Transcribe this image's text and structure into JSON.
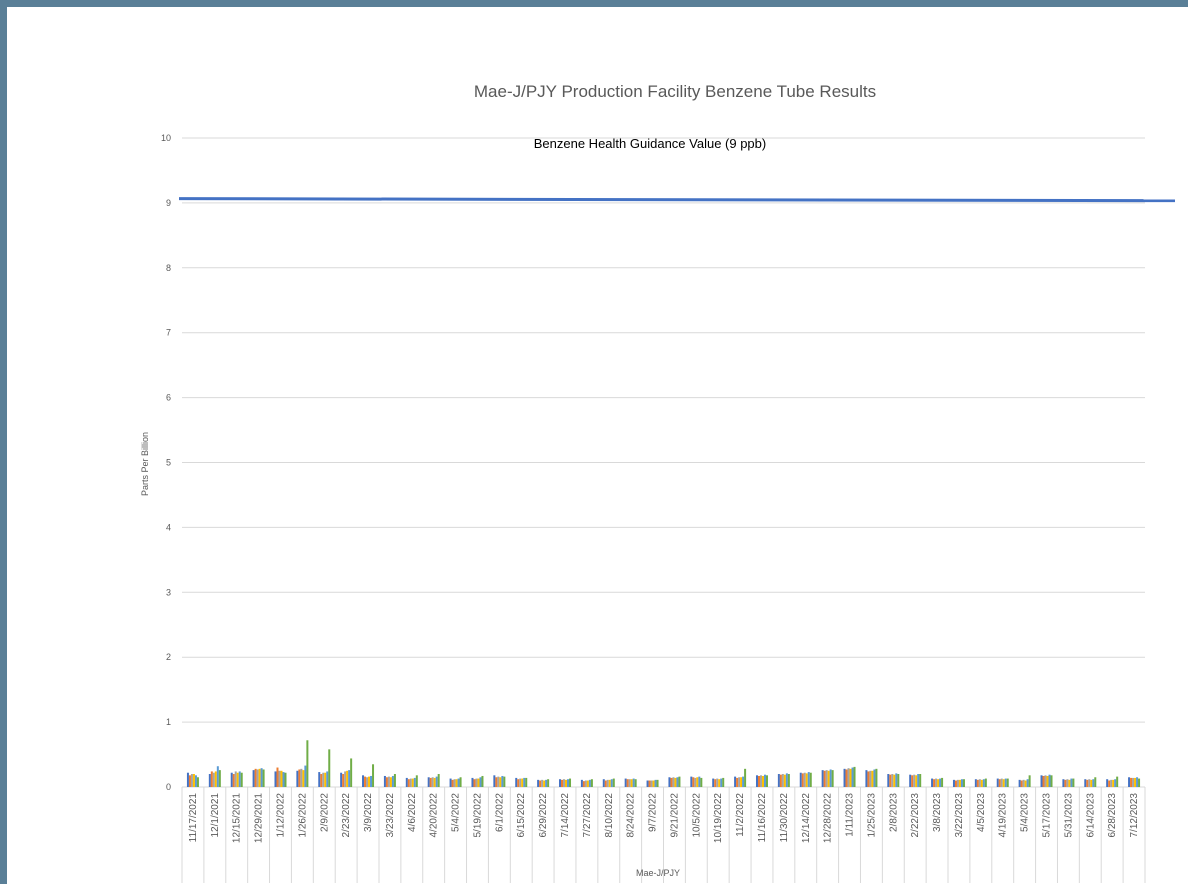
{
  "chart_data": {
    "type": "bar",
    "title": "Mae-J/PJY Production Facility Benzene Tube Results",
    "xlabel": "Mae-J/PJY",
    "ylabel": "Parts Per Billion",
    "ylim": [
      0,
      10
    ],
    "yticks": [
      0,
      1,
      2,
      3,
      4,
      5,
      6,
      7,
      8,
      9,
      10
    ],
    "grid": true,
    "reference_line": {
      "label": "Benzene Health Guidance Value (9 ppb)",
      "value": 9.05,
      "color": "#4472c4"
    },
    "categories": [
      "11/17/2021",
      "12/1/2021",
      "12/15/2021",
      "12/29/2021",
      "1/12/2022",
      "1/26/2022",
      "2/9/2022",
      "2/23/2022",
      "3/9/2022",
      "3/23/2022",
      "4/6/2022",
      "4/20/2022",
      "5/4/2022",
      "5/19/2022",
      "6/1/2022",
      "6/15/2022",
      "6/29/2022",
      "7/14/2022",
      "7/27/2022",
      "8/10/2022",
      "8/24/2022",
      "9/7/2022",
      "9/21/2022",
      "10/5/2022",
      "10/19/2022",
      "11/2/2022",
      "11/16/2022",
      "11/30/2022",
      "12/14/2022",
      "12/28/2022",
      "1/11/2023",
      "1/25/2023",
      "2/8/2023",
      "2/22/2023",
      "3/8/2023",
      "3/22/2023",
      "4/5/2023",
      "4/19/2023",
      "5/4/2023",
      "5/17/2023",
      "5/31/2023",
      "6/14/2023",
      "6/28/2023",
      "7/12/2023"
    ],
    "series_colors": [
      "#4472c4",
      "#ed7d31",
      "#a5a5a5",
      "#ffc000",
      "#5b9bd5",
      "#70ad47",
      "#264478",
      "#9e480e",
      "#636363",
      "#997300",
      "#255e91",
      "#43682b"
    ],
    "series": [
      {
        "values": [
          0.22,
          0.2,
          0.22,
          0.26,
          0.24,
          0.25,
          0.23,
          0.22,
          0.18,
          0.17,
          0.14,
          0.15,
          0.13,
          0.14,
          0.18,
          0.14,
          0.11,
          0.12,
          0.11,
          0.12,
          0.13,
          0.1,
          0.15,
          0.16,
          0.13,
          0.16,
          0.18,
          0.2,
          0.22,
          0.26,
          0.28,
          0.26,
          0.2,
          0.19,
          0.13,
          0.11,
          0.12,
          0.13,
          0.11,
          0.18,
          0.12,
          0.12,
          0.12,
          0.15
        ]
      },
      {
        "values": [
          0.18,
          0.24,
          0.2,
          0.28,
          0.3,
          0.27,
          0.2,
          0.2,
          0.16,
          0.15,
          0.12,
          0.14,
          0.11,
          0.12,
          0.15,
          0.12,
          0.1,
          0.11,
          0.09,
          0.1,
          0.12,
          0.1,
          0.14,
          0.15,
          0.12,
          0.14,
          0.17,
          0.19,
          0.21,
          0.25,
          0.27,
          0.24,
          0.19,
          0.18,
          0.12,
          0.1,
          0.11,
          0.12,
          0.1,
          0.17,
          0.11,
          0.11,
          0.1,
          0.14
        ]
      },
      {
        "values": [
          0.2,
          0.22,
          0.24,
          0.27,
          0.25,
          0.28,
          0.22,
          0.24,
          0.15,
          0.16,
          0.13,
          0.15,
          0.12,
          0.13,
          0.16,
          0.13,
          0.11,
          0.12,
          0.1,
          0.11,
          0.12,
          0.1,
          0.15,
          0.14,
          0.13,
          0.15,
          0.18,
          0.2,
          0.22,
          0.26,
          0.29,
          0.25,
          0.2,
          0.19,
          0.13,
          0.11,
          0.12,
          0.13,
          0.11,
          0.18,
          0.12,
          0.12,
          0.11,
          0.14
        ]
      },
      {
        "values": [
          0.2,
          0.24,
          0.22,
          0.28,
          0.25,
          0.26,
          0.22,
          0.25,
          0.16,
          0.15,
          0.13,
          0.14,
          0.12,
          0.13,
          0.15,
          0.13,
          0.1,
          0.11,
          0.1,
          0.11,
          0.12,
          0.1,
          0.14,
          0.15,
          0.12,
          0.15,
          0.17,
          0.19,
          0.21,
          0.25,
          0.28,
          0.25,
          0.19,
          0.18,
          0.12,
          0.11,
          0.11,
          0.12,
          0.1,
          0.17,
          0.11,
          0.11,
          0.11,
          0.14
        ]
      },
      {
        "values": [
          0.18,
          0.32,
          0.24,
          0.29,
          0.23,
          0.33,
          0.24,
          0.26,
          0.17,
          0.17,
          0.14,
          0.16,
          0.13,
          0.15,
          0.17,
          0.14,
          0.11,
          0.12,
          0.11,
          0.12,
          0.13,
          0.11,
          0.15,
          0.16,
          0.13,
          0.16,
          0.19,
          0.21,
          0.23,
          0.27,
          0.3,
          0.27,
          0.21,
          0.2,
          0.13,
          0.12,
          0.12,
          0.13,
          0.12,
          0.19,
          0.13,
          0.12,
          0.12,
          0.15
        ]
      },
      {
        "values": [
          0.15,
          0.26,
          0.22,
          0.27,
          0.22,
          0.72,
          0.58,
          0.44,
          0.35,
          0.2,
          0.18,
          0.2,
          0.15,
          0.17,
          0.16,
          0.14,
          0.12,
          0.13,
          0.12,
          0.13,
          0.12,
          0.11,
          0.16,
          0.14,
          0.14,
          0.28,
          0.18,
          0.2,
          0.22,
          0.26,
          0.31,
          0.28,
          0.2,
          0.2,
          0.14,
          0.12,
          0.13,
          0.13,
          0.18,
          0.18,
          0.13,
          0.15,
          0.16,
          0.13
        ]
      }
    ]
  }
}
